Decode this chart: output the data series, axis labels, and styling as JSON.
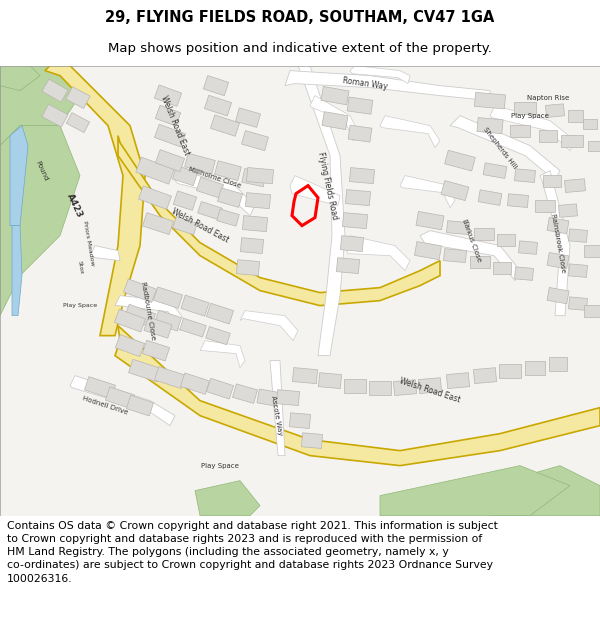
{
  "title_line1": "29, FLYING FIELDS ROAD, SOUTHAM, CV47 1GA",
  "title_line2": "Map shows position and indicative extent of the property.",
  "footer_text": "Contains OS data © Crown copyright and database right 2021. This information is subject to Crown copyright and database rights 2023 and is reproduced with the permission of HM Land Registry. The polygons (including the associated geometry, namely x, y co-ordinates) are subject to Crown copyright and database rights 2023 Ordnance Survey 100026316.",
  "title_fontsize": 10.5,
  "subtitle_fontsize": 9.5,
  "footer_fontsize": 7.8,
  "fig_width": 6.0,
  "fig_height": 6.25,
  "map_bg": "#f5f3f0",
  "road_major_fill": "#f5e8a0",
  "road_major_edge": "#c8a800",
  "road_minor_fill": "#ffffff",
  "road_minor_edge": "#cccccc",
  "building_fill": "#dddbd7",
  "building_edge": "#b8b5b0",
  "green_fill": "#b8d4a0",
  "green_edge": "#90b878",
  "water_fill": "#a8d0e8",
  "water_edge": "#70a8c8",
  "plot_color": "#ff0000",
  "plot_linewidth": 2.2,
  "label_color": "#333333",
  "label_size": 5.5
}
